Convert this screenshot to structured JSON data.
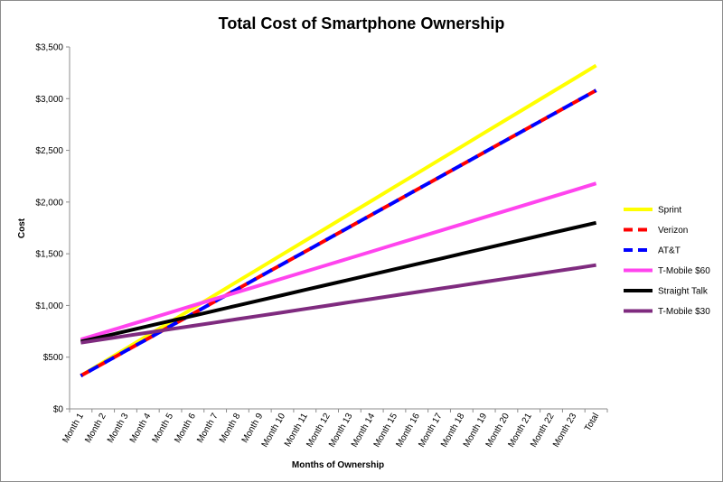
{
  "chart_data": {
    "type": "line",
    "title": "Total Cost of Smartphone Ownership",
    "xlabel": "Months of Ownership",
    "ylabel": "Cost",
    "categories": [
      "Month 1",
      "Month 2",
      "Month 3",
      "Month 4",
      "Month 5",
      "Month 6",
      "Month 7",
      "Month 8",
      "Month 9",
      "Month 10",
      "Month 11",
      "Month 12",
      "Month 13",
      "Month 14",
      "Month 15",
      "Month 16",
      "Month 17",
      "Month 18",
      "Month 19",
      "Month 20",
      "Month 21",
      "Month 22",
      "Month 23",
      "Total"
    ],
    "ylim": [
      0,
      3500
    ],
    "yticks": [
      0,
      500,
      1000,
      1500,
      2000,
      2500,
      3000,
      3500
    ],
    "ytick_labels": [
      "$0",
      "$500",
      "$1,000",
      "$1,500",
      "$2,000",
      "$2,500",
      "$3,000",
      "$3,500"
    ],
    "grid": false,
    "legend_position": "right",
    "series": [
      {
        "name": "Sprint",
        "color": "#ffff00",
        "dash": "solid",
        "start": 320,
        "end": 3320
      },
      {
        "name": "Verizon",
        "color": "#ff0000",
        "dash": "dashed",
        "start": 320,
        "end": 3080
      },
      {
        "name": "AT&T",
        "color": "#0000ff",
        "dash": "dashed",
        "start": 320,
        "end": 3080
      },
      {
        "name": "T-Mobile $60",
        "color": "#ff44ee",
        "dash": "solid",
        "start": 670,
        "end": 2180
      },
      {
        "name": "Straight Talk",
        "color": "#000000",
        "dash": "solid",
        "start": 650,
        "end": 1800
      },
      {
        "name": "T-Mobile $30",
        "color": "#7f2b7f",
        "dash": "solid",
        "start": 640,
        "end": 1390
      }
    ]
  }
}
